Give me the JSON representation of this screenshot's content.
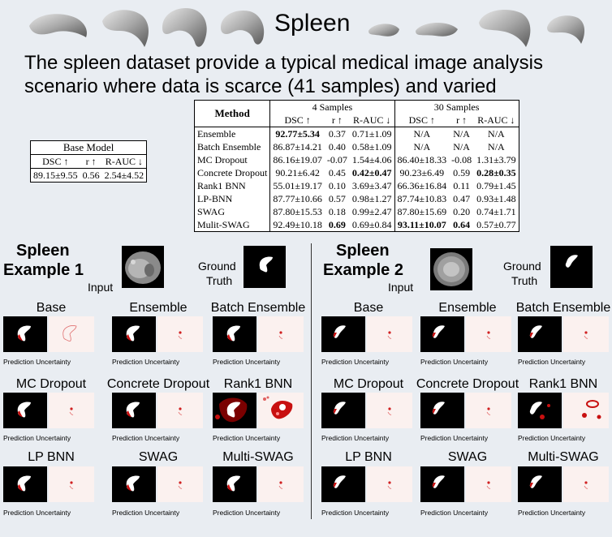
{
  "title": "Spleen",
  "description": "The spleen dataset provide a typical medical image analysis scenario where data is scarce (41 samples) and varied",
  "base_table": {
    "caption": "Base Model",
    "headers": [
      "DSC ↑",
      "r ↑",
      "R-AUC ↓"
    ],
    "row": [
      "89.15±9.55",
      "0.56",
      "2.54±4.52"
    ]
  },
  "main_table": {
    "method_header": "Method",
    "group1": "4 Samples",
    "group2": "30 Samples",
    "subheaders": [
      "DSC ↑",
      "r ↑",
      "R-AUC ↓",
      "DSC ↑",
      "r ↑",
      "R-AUC ↓"
    ],
    "rows": [
      {
        "method": "Ensemble",
        "c": [
          "92.77±5.34",
          "0.37",
          "0.71±1.09",
          "N/A",
          "N/A",
          "N/A"
        ]
      },
      {
        "method": "Batch Ensemble",
        "c": [
          "86.87±14.21",
          "0.40",
          "0.58±1.09",
          "N/A",
          "N/A",
          "N/A"
        ]
      },
      {
        "method": "MC Dropout",
        "c": [
          "86.16±19.07",
          "-0.07",
          "1.54±4.06",
          "86.40±18.33",
          "-0.08",
          "1.31±3.79"
        ]
      },
      {
        "method": "Concrete Dropout",
        "c": [
          "90.21±6.42",
          "0.45",
          "0.42±0.47",
          "90.23±6.49",
          "0.59",
          "0.28±0.35"
        ]
      },
      {
        "method": "Rank1 BNN",
        "c": [
          "55.01±19.17",
          "0.10",
          "3.69±3.47",
          "66.36±16.84",
          "0.11",
          "0.79±1.45"
        ]
      },
      {
        "method": "LP-BNN",
        "c": [
          "87.77±10.66",
          "0.57",
          "0.98±1.27",
          "87.74±10.83",
          "0.47",
          "0.93±1.48"
        ]
      },
      {
        "method": "SWAG",
        "c": [
          "87.80±15.53",
          "0.18",
          "0.99±2.47",
          "87.80±15.69",
          "0.20",
          "0.74±1.71"
        ]
      },
      {
        "method": "Mulit-SWAG",
        "c": [
          "92.49±10.18",
          "0.69",
          "0.69±0.84",
          "93.11±10.07",
          "0.64",
          "0.57±0.77"
        ]
      }
    ]
  },
  "example1": {
    "label_line1": "Spleen",
    "label_line2": "Example 1",
    "input_label": "Input",
    "gt_line1": "Ground",
    "gt_line2": "Truth"
  },
  "example2": {
    "label_line1": "Spleen",
    "label_line2": "Example 2",
    "input_label": "Input",
    "gt_line1": "Ground",
    "gt_line2": "Truth"
  },
  "methods": [
    "Base",
    "Ensemble",
    "Batch Ensemble",
    "MC Dropout",
    "Concrete Dropout",
    "Rank1 BNN",
    "LP BNN",
    "SWAG",
    "Multi-SWAG"
  ],
  "panel_caption": "Prediction Uncertainty"
}
